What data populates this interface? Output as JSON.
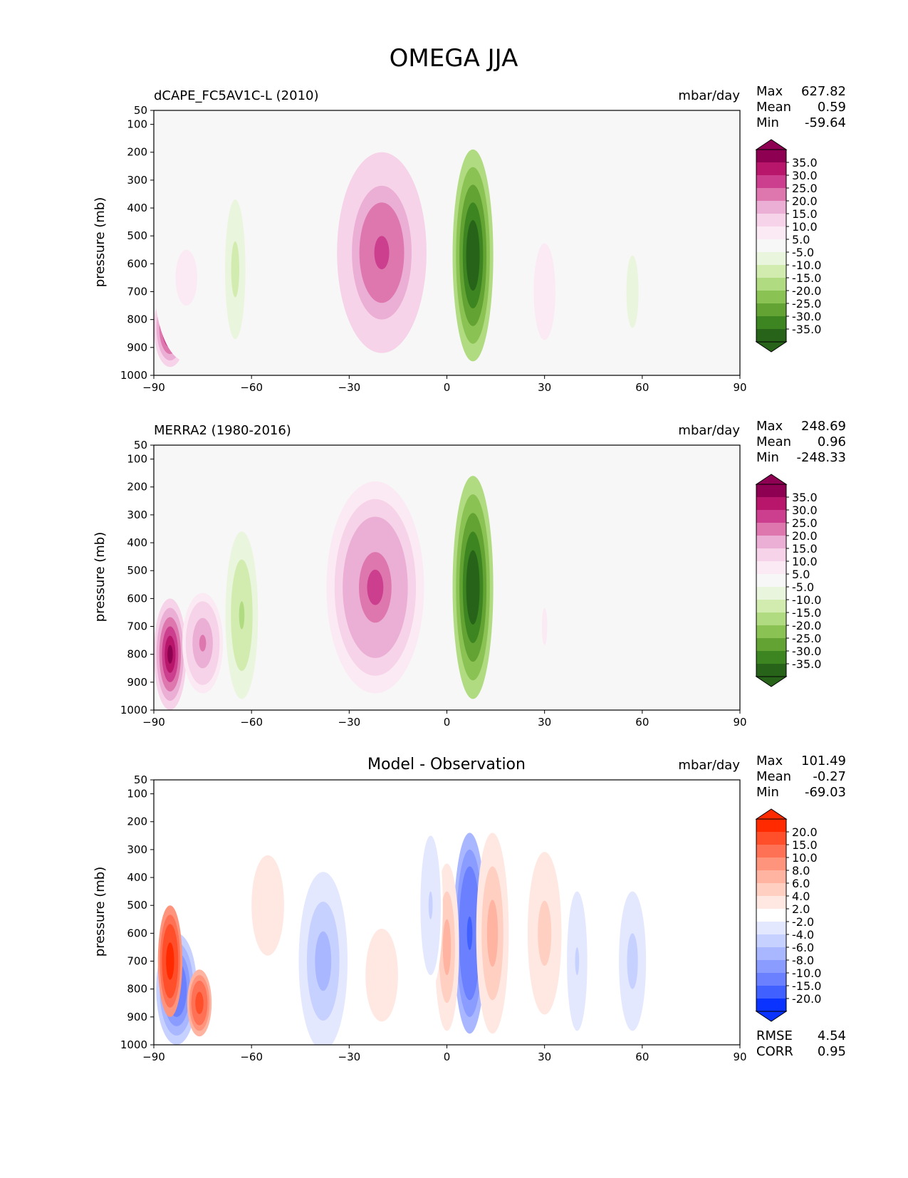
{
  "title": "OMEGA JJA",
  "colorbars": {
    "field": {
      "labels": [
        "35.0",
        "30.0",
        "25.0",
        "20.0",
        "15.0",
        "10.0",
        "5.0",
        "-5.0",
        "-10.0",
        "-15.0",
        "-20.0",
        "-25.0",
        "-30.0",
        "-35.0"
      ],
      "colors": [
        "#8e0152",
        "#b7166b",
        "#cc3e8e",
        "#de77ae",
        "#ebaed4",
        "#f6d3e8",
        "#fbeaf3",
        "#f7f7f7",
        "#e9f5dc",
        "#d2ecb0",
        "#b0db80",
        "#8bc254",
        "#62a333",
        "#3d8520",
        "#276419"
      ]
    },
    "diff": {
      "labels": [
        "20.0",
        "15.0",
        "10.0",
        "8.0",
        "6.0",
        "4.0",
        "2.0",
        "-2.0",
        "-4.0",
        "-6.0",
        "-8.0",
        "-10.0",
        "-15.0",
        "-20.0"
      ],
      "colors": [
        "#ff2a00",
        "#ff4e2a",
        "#ff7155",
        "#ff947c",
        "#ffb3a1",
        "#ffcfc2",
        "#ffe8e1",
        "#ffffff",
        "#e3e8ff",
        "#c7d1ff",
        "#a8b7ff",
        "#8a9cff",
        "#6a80ff",
        "#4060ff",
        "#0a33ff"
      ]
    }
  },
  "chart_data": [
    {
      "type": "contour",
      "title": "dCAPE_FC5AV1C-L (2010)",
      "units": "mbar/day",
      "stats": {
        "Max": "627.82",
        "Mean": "0.59",
        "Min": "-59.64"
      },
      "xlabel": "",
      "ylabel": "pressure (mb)",
      "xlim": [
        -90,
        90
      ],
      "ylim": [
        1000,
        50
      ],
      "xticks": [
        "−90",
        "−60",
        "−30",
        "0",
        "30",
        "60",
        "90"
      ],
      "yticks": [
        "50",
        "100",
        "200",
        "300",
        "400",
        "500",
        "600",
        "700",
        "800",
        "900",
        "1000"
      ],
      "features": [
        {
          "lat": 8,
          "lat_hw": 5,
          "p": 570,
          "p_hw": 380,
          "value": -40
        },
        {
          "lat": -20,
          "lat_hw": 11,
          "p": 560,
          "p_hw": 360,
          "value": 28
        },
        {
          "lat": -65,
          "lat_hw": 3,
          "p": 620,
          "p_hw": 300,
          "value": -12
        },
        {
          "lat": -85,
          "lat_hw": 4,
          "p": 830,
          "p_hw": 140,
          "value": 40
        },
        {
          "lat": -80,
          "lat_hw": 8,
          "p": 650,
          "p_hw": 300,
          "value": 6
        },
        {
          "lat": 30,
          "lat_hw": 4,
          "p": 700,
          "p_hw": 260,
          "value": 10
        },
        {
          "lat": 57,
          "lat_hw": 3,
          "p": 700,
          "p_hw": 260,
          "value": -7
        }
      ]
    },
    {
      "type": "contour",
      "title": "MERRA2 (1980-2016)",
      "units": "mbar/day",
      "stats": {
        "Max": "248.69",
        "Mean": "0.96",
        "Min": "-248.33"
      },
      "xlabel": "",
      "ylabel": "pressure (mb)",
      "xlim": [
        -90,
        90
      ],
      "ylim": [
        1000,
        50
      ],
      "xticks": [
        "−90",
        "−60",
        "−30",
        "0",
        "30",
        "60",
        "90"
      ],
      "yticks": [
        "50",
        "100",
        "200",
        "300",
        "400",
        "500",
        "600",
        "700",
        "800",
        "900",
        "1000"
      ],
      "features": [
        {
          "lat": 8,
          "lat_hw": 5,
          "p": 560,
          "p_hw": 400,
          "value": -40
        },
        {
          "lat": -22,
          "lat_hw": 12,
          "p": 560,
          "p_hw": 380,
          "value": 26
        },
        {
          "lat": -63,
          "lat_hw": 4,
          "p": 660,
          "p_hw": 300,
          "value": -16
        },
        {
          "lat": -85,
          "lat_hw": 4,
          "p": 800,
          "p_hw": 200,
          "value": 40
        },
        {
          "lat": -75,
          "lat_hw": 5,
          "p": 760,
          "p_hw": 180,
          "value": 22
        },
        {
          "lat": 30,
          "lat_hw": 2,
          "p": 700,
          "p_hw": 200,
          "value": 6
        }
      ]
    },
    {
      "type": "contour",
      "title": "Model - Observation",
      "units": "mbar/day",
      "stats": {
        "Max": "101.49",
        "Mean": "-0.27",
        "Min": "-69.03"
      },
      "metrics": {
        "RMSE": "4.54",
        "CORR": "0.95"
      },
      "xlabel": "",
      "ylabel": "pressure (mb)",
      "xlim": [
        -90,
        90
      ],
      "ylim": [
        1000,
        50
      ],
      "xticks": [
        "−90",
        "−60",
        "−30",
        "0",
        "30",
        "60",
        "90"
      ],
      "yticks": [
        "50",
        "100",
        "200",
        "300",
        "400",
        "500",
        "600",
        "700",
        "800",
        "900",
        "1000"
      ],
      "features": [
        {
          "lat": 7,
          "lat_hw": 4,
          "p": 600,
          "p_hw": 360,
          "value": -16
        },
        {
          "lat": 14,
          "lat_hw": 4,
          "p": 600,
          "p_hw": 360,
          "value": 8
        },
        {
          "lat": 0,
          "lat_hw": 3,
          "p": 650,
          "p_hw": 300,
          "value": 7
        },
        {
          "lat": -38,
          "lat_hw": 6,
          "p": 700,
          "p_hw": 320,
          "value": -7
        },
        {
          "lat": -55,
          "lat_hw": 8,
          "p": 500,
          "p_hw": 360,
          "value": 3
        },
        {
          "lat": -83,
          "lat_hw": 5,
          "p": 800,
          "p_hw": 200,
          "value": -14
        },
        {
          "lat": -85,
          "lat_hw": 3,
          "p": 700,
          "p_hw": 200,
          "value": 25
        },
        {
          "lat": -76,
          "lat_hw": 3,
          "p": 850,
          "p_hw": 120,
          "value": 18
        },
        {
          "lat": 30,
          "lat_hw": 5,
          "p": 600,
          "p_hw": 350,
          "value": 5
        },
        {
          "lat": 57,
          "lat_hw": 4,
          "p": 700,
          "p_hw": 300,
          "value": -5
        },
        {
          "lat": -20,
          "lat_hw": 6,
          "p": 750,
          "p_hw": 250,
          "value": 4
        },
        {
          "lat": -5,
          "lat_hw": 3,
          "p": 500,
          "p_hw": 300,
          "value": -4
        },
        {
          "lat": 40,
          "lat_hw": 3,
          "p": 700,
          "p_hw": 300,
          "value": -4
        }
      ]
    }
  ]
}
